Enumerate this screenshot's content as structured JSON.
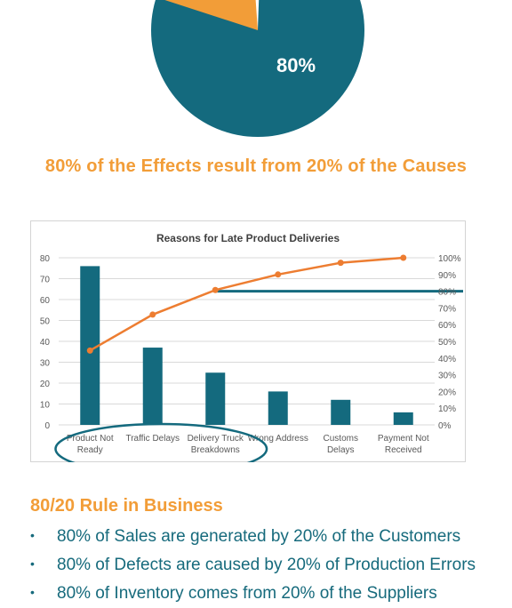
{
  "pie": {
    "label": "80%",
    "colors": {
      "main": "#146A7E",
      "slice": "#F29D38"
    }
  },
  "headline": "80% of the Effects result from 20% of the Causes",
  "chart_data": {
    "type": "bar",
    "title": "Reasons for Late Product Deliveries",
    "categories": [
      "Product Not Ready",
      "Traffic Delays",
      "Delivery Truck Breakdowns",
      "Wrong Address",
      "Customs Delays",
      "Payment Not Received"
    ],
    "series": [
      {
        "type": "bar",
        "values": [
          76,
          37,
          25,
          16,
          12,
          6
        ],
        "color": "#146A7E"
      },
      {
        "type": "line",
        "axis": "right",
        "values": [
          44.5,
          66,
          80.7,
          90,
          97,
          100
        ],
        "color": "#ED7D31"
      }
    ],
    "ylim": [
      0,
      80
    ],
    "yticks": [
      "0",
      "10",
      "20",
      "30",
      "40",
      "50",
      "60",
      "70",
      "80"
    ],
    "y2lim": [
      0,
      100
    ],
    "y2ticks": [
      "0%",
      "10%",
      "20%",
      "30%",
      "40%",
      "50%",
      "60%",
      "70%",
      "80%",
      "90%",
      "100%"
    ],
    "threshold": {
      "value": 80,
      "color": "#146A7E"
    },
    "grid": true,
    "highlight": {
      "categories": [
        "Product Not Ready",
        "Traffic Delays",
        "Delivery Truck Breakdowns"
      ],
      "color": "#146A7E"
    }
  },
  "section_title": "80/20 Rule in Business",
  "bullets": [
    "80% of Sales are generated by 20% of the Customers",
    "80% of Defects are caused by 20% of Production Errors",
    "80% of Inventory comes from 20% of the Suppliers"
  ],
  "bullet_glyph": "•"
}
